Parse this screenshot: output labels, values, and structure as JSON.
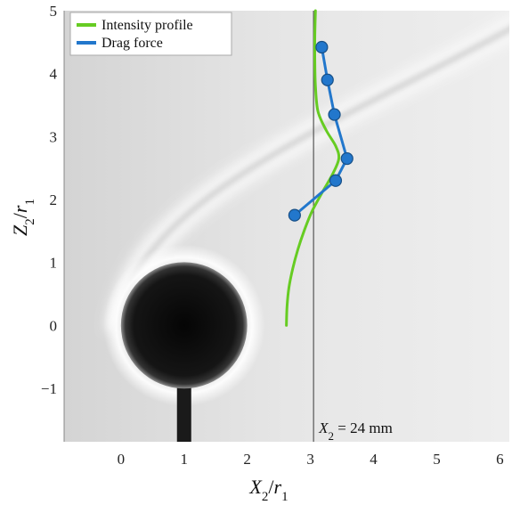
{
  "chart_data": {
    "type": "line",
    "xlabel": "X2/r1",
    "ylabel": "Z2/r1",
    "xlim": [
      -0.9,
      6.15
    ],
    "ylim": [
      -1.85,
      5.0
    ],
    "x_ticks": [
      0,
      1,
      2,
      3,
      4,
      5,
      6
    ],
    "y_ticks": [
      -1,
      0,
      1,
      2,
      3,
      4,
      5
    ],
    "x_tick_labels": [
      "0",
      "1",
      "2",
      "3",
      "4",
      "5",
      "6"
    ],
    "y_tick_labels": [
      "−1",
      "0",
      "1",
      "2",
      "3",
      "4",
      "5"
    ],
    "grid": false,
    "legend_position": "top-left",
    "legend": [
      "Intensity profile",
      "Drag force"
    ],
    "annotation": {
      "prefix": "X",
      "subscript": "2",
      "suffix": " = 24 mm",
      "x": 3.05
    },
    "background": {
      "sphere_center": [
        1.0,
        0.0
      ],
      "sphere_radius": 1.0,
      "description_colors": {
        "sphere": "#141414",
        "field": "#e4e4e4"
      }
    },
    "series": [
      {
        "name": "Intensity profile",
        "color": "#66cc22",
        "marker": "none",
        "x": [
          2.62,
          2.63,
          2.66,
          2.72,
          2.8,
          2.9,
          3.02,
          3.18,
          3.35,
          3.45,
          3.4,
          3.25,
          3.12,
          3.08,
          3.07,
          3.07,
          3.08
        ],
        "y": [
          0.0,
          0.3,
          0.6,
          0.9,
          1.2,
          1.5,
          1.8,
          2.1,
          2.4,
          2.65,
          2.85,
          3.1,
          3.4,
          3.8,
          4.2,
          4.6,
          5.0
        ]
      },
      {
        "name": "Drag force",
        "color": "#2277cc",
        "marker": "circle",
        "x": [
          2.75,
          3.4,
          3.58,
          3.38,
          3.27,
          3.18
        ],
        "y": [
          1.75,
          2.3,
          2.65,
          3.35,
          3.9,
          4.42
        ]
      }
    ]
  }
}
